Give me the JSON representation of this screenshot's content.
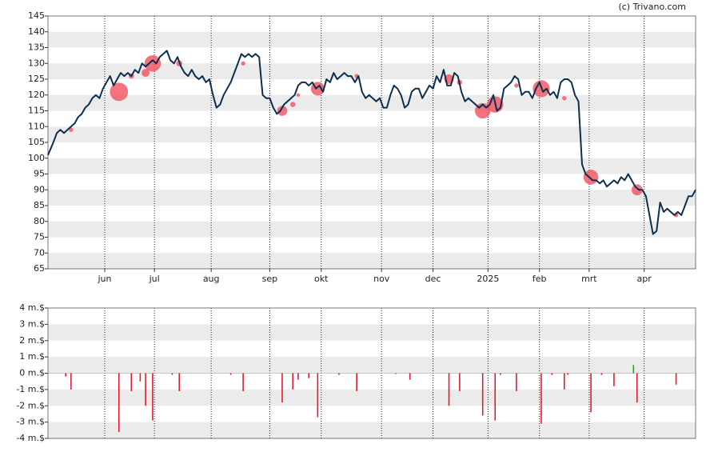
{
  "chart_data": [
    {
      "type": "line",
      "credit": "(c) Trivano.com",
      "x": [
        0,
        3,
        5,
        7,
        9,
        11,
        13,
        15,
        17,
        19,
        21,
        23,
        25,
        27,
        29,
        31,
        33,
        35,
        37,
        39,
        41,
        43,
        45,
        47,
        49,
        51,
        53,
        55,
        57,
        59,
        61,
        63,
        65,
        67,
        69,
        71,
        73,
        75,
        77,
        79,
        81,
        83,
        85,
        87,
        89,
        91,
        93,
        95,
        97,
        99,
        101,
        103,
        105,
        107,
        109,
        111,
        113,
        115,
        117,
        119,
        121,
        123,
        125,
        127,
        129,
        131,
        133,
        135,
        137,
        139,
        141,
        143,
        145,
        147,
        149,
        151,
        153,
        155,
        157,
        159,
        161,
        163,
        165,
        167,
        169,
        171,
        173,
        175,
        177,
        179,
        181,
        183,
        185,
        187,
        189,
        191,
        193,
        195,
        197,
        199,
        201,
        203,
        205,
        207,
        209,
        211,
        213,
        215,
        217,
        219,
        221,
        223,
        225,
        227,
        229,
        231,
        233,
        235,
        237,
        239,
        241,
        243,
        245,
        247,
        249,
        251,
        253,
        255,
        257,
        259,
        261,
        263,
        265,
        267,
        269,
        271,
        273,
        275,
        277,
        279,
        281,
        283,
        285,
        287,
        289,
        291,
        293,
        295,
        297,
        299,
        301,
        303,
        305,
        307,
        309,
        311,
        313,
        315,
        317,
        319,
        321,
        323,
        325,
        327,
        329,
        331,
        333,
        335,
        337,
        339,
        341,
        343,
        345,
        347,
        349,
        351,
        353,
        355,
        357,
        359,
        361,
        363,
        365
      ],
      "series": [
        {
          "color": "#0d2f4f",
          "values": [
            101,
            105,
            108,
            109,
            108,
            109,
            110,
            111,
            113,
            114,
            116,
            117,
            119,
            120,
            119,
            122,
            124,
            126,
            123,
            125,
            127,
            126,
            127,
            126,
            128,
            127,
            130,
            129,
            130,
            131,
            130,
            132,
            133,
            134,
            131,
            130,
            132,
            129,
            127,
            126,
            128,
            126,
            125,
            126,
            124,
            125,
            120,
            116,
            117,
            120,
            122,
            124,
            127,
            130,
            133,
            132,
            133,
            132,
            133,
            132,
            120,
            119,
            119,
            116,
            114,
            115,
            117,
            118,
            119,
            120,
            123,
            124,
            124,
            123,
            124,
            122,
            123,
            121,
            125,
            124,
            127,
            125,
            126,
            127,
            126,
            126,
            124,
            126,
            121,
            119,
            120,
            119,
            118,
            119,
            116,
            116,
            120,
            123,
            122,
            120,
            116,
            117,
            121,
            122,
            122,
            119,
            121,
            123,
            122,
            126,
            124,
            128,
            123,
            123,
            127,
            126,
            121,
            118,
            119,
            118,
            117,
            116,
            117,
            116,
            117,
            120,
            115,
            116,
            122,
            123,
            124,
            126,
            125,
            120,
            121,
            121,
            119,
            122,
            124,
            121,
            122,
            120,
            121,
            119,
            124,
            125,
            125,
            124,
            120,
            118,
            98,
            95,
            94,
            93,
            93,
            92,
            93,
            91,
            92,
            93,
            92,
            94,
            93,
            95,
            93,
            91,
            90,
            90,
            88,
            82,
            76,
            77,
            86,
            83,
            84,
            83,
            82,
            83,
            82,
            85,
            88,
            88,
            90
          ]
        }
      ],
      "bubbles": {
        "color": "#f0505f",
        "x": [
          13,
          40,
          47,
          55,
          59,
          74,
          110,
          132,
          138,
          141,
          152,
          174,
          226,
          232,
          245,
          252,
          264,
          278,
          291,
          306,
          332,
          354
        ],
        "y": [
          109,
          121,
          126,
          127,
          130,
          130,
          130,
          115,
          117,
          120,
          122,
          126,
          125,
          124,
          115,
          117,
          123,
          122,
          119,
          94,
          90,
          82
        ],
        "sizes": [
          0.2,
          3.6,
          0.3,
          0.7,
          2.9,
          0.4,
          0.2,
          1.1,
          0.3,
          0.1,
          2.0,
          0.2,
          1.0,
          0.3,
          2.6,
          2.9,
          0.2,
          3.1,
          0.2,
          2.4,
          1.3,
          0.2
        ]
      },
      "xlim": [
        0,
        365
      ],
      "xticks": [
        {
          "value": 32,
          "label": "jun"
        },
        {
          "value": 60,
          "label": "jul"
        },
        {
          "value": 92,
          "label": "aug"
        },
        {
          "value": 125,
          "label": "sep"
        },
        {
          "value": 154,
          "label": "okt"
        },
        {
          "value": 188,
          "label": "nov"
        },
        {
          "value": 217,
          "label": "dec"
        },
        {
          "value": 248,
          "label": "2025"
        },
        {
          "value": 277,
          "label": "feb"
        },
        {
          "value": 305,
          "label": "mrt"
        },
        {
          "value": 336,
          "label": "apr"
        }
      ],
      "ylim": [
        65,
        145
      ],
      "yticks": [
        65,
        70,
        75,
        80,
        85,
        90,
        95,
        100,
        105,
        110,
        115,
        120,
        125,
        130,
        135,
        140,
        145
      ],
      "grid": true
    },
    {
      "type": "bar",
      "color": "#e31a2c",
      "positive_color": "#2e9a3a",
      "x": [
        10,
        13,
        40,
        47,
        52,
        55,
        59,
        70,
        74,
        103,
        110,
        132,
        138,
        141,
        147,
        152,
        164,
        174,
        196,
        204,
        226,
        232,
        245,
        252,
        255,
        264,
        278,
        284,
        291,
        293,
        306,
        312,
        319,
        330,
        332,
        354
      ],
      "values": [
        -0.2,
        -1,
        -3.6,
        -1.1,
        -0.5,
        -2,
        -2.9,
        -0.1,
        -1.1,
        -0.1,
        -1.1,
        -1.8,
        -1,
        -0.4,
        -0.3,
        -2.7,
        -0.1,
        -1.1,
        -0.05,
        -0.4,
        -2,
        -1.1,
        -2.6,
        -2.9,
        -0.1,
        -1.1,
        -3.1,
        -0.1,
        -1,
        -0.1,
        -2.4,
        -0.1,
        -0.8,
        0.5,
        -1.8,
        -0.7
      ],
      "xlim": [
        0,
        365
      ],
      "ylim": [
        -4,
        4
      ],
      "yticks": [
        {
          "value": -4,
          "label": "-4 m.$"
        },
        {
          "value": -3,
          "label": "-3 m.$"
        },
        {
          "value": -2,
          "label": "-2 m.$"
        },
        {
          "value": -1,
          "label": "-1 m.$"
        },
        {
          "value": 0,
          "label": "0 m.$"
        },
        {
          "value": 1,
          "label": "1 m.$"
        },
        {
          "value": 2,
          "label": "2 m.$"
        },
        {
          "value": 3,
          "label": "3 m.$"
        },
        {
          "value": 4,
          "label": "4 m.$"
        }
      ],
      "grid": true
    }
  ]
}
